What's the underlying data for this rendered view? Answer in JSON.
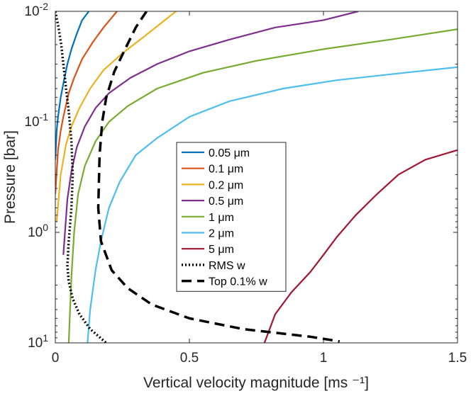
{
  "chart_data": {
    "type": "line",
    "title": "",
    "xlabel": "Vertical velocity magnitude [ms ⁻¹]",
    "ylabel": "Pressure [bar]",
    "xlim": [
      0,
      1.5
    ],
    "ylim": [
      0.01,
      10
    ],
    "y_scale": "log",
    "y_reversed": true,
    "grid": false,
    "legend_position": "center",
    "x_ticks": [
      0,
      0.5,
      1,
      1.5
    ],
    "x_tick_labels": [
      "0",
      "0.5",
      "1",
      "1.5"
    ],
    "y_ticks": [
      {
        "value": 0.01,
        "base": "10",
        "exp": "-2"
      },
      {
        "value": 0.1,
        "base": "10",
        "exp": "-1"
      },
      {
        "value": 1,
        "base": "10",
        "exp": "0"
      },
      {
        "value": 10,
        "base": "10",
        "exp": "1"
      }
    ],
    "series": [
      {
        "name": "0.05 μm",
        "color": "#0072BD",
        "dash": "solid",
        "x": [
          0.0,
          0.005,
          0.01,
          0.02,
          0.03,
          0.045,
          0.06,
          0.08,
          0.1,
          0.125
        ],
        "y": [
          0.22,
          0.12,
          0.09,
          0.06,
          0.045,
          0.03,
          0.022,
          0.016,
          0.012,
          0.01
        ]
      },
      {
        "name": "0.1 μm",
        "color": "#D95319",
        "dash": "solid",
        "x": [
          0.0,
          0.01,
          0.02,
          0.03,
          0.05,
          0.07,
          0.1,
          0.14,
          0.18,
          0.23
        ],
        "y": [
          0.45,
          0.18,
          0.12,
          0.09,
          0.055,
          0.04,
          0.027,
          0.019,
          0.014,
          0.01
        ]
      },
      {
        "name": "0.2 μm",
        "color": "#EDB120",
        "dash": "solid",
        "x": [
          0.005,
          0.02,
          0.04,
          0.06,
          0.09,
          0.13,
          0.18,
          0.25,
          0.33,
          0.45
        ],
        "y": [
          0.8,
          0.3,
          0.16,
          0.11,
          0.075,
          0.05,
          0.034,
          0.024,
          0.017,
          0.01
        ]
      },
      {
        "name": "0.5 μm",
        "color": "#7E2F8E",
        "dash": "solid",
        "x": [
          0.03,
          0.045,
          0.06,
          0.08,
          0.11,
          0.15,
          0.2,
          0.28,
          0.38,
          0.5,
          0.65,
          0.82,
          1.0,
          1.13
        ],
        "y": [
          1.6,
          0.5,
          0.28,
          0.17,
          0.11,
          0.075,
          0.055,
          0.04,
          0.03,
          0.023,
          0.018,
          0.014,
          0.012,
          0.01
        ]
      },
      {
        "name": "1 μm",
        "color": "#77AC30",
        "dash": "solid",
        "x": [
          0.05,
          0.06,
          0.07,
          0.085,
          0.11,
          0.15,
          0.2,
          0.27,
          0.38,
          0.55,
          0.75,
          1.0,
          1.25,
          1.5
        ],
        "y": [
          10,
          2.5,
          1.0,
          0.45,
          0.25,
          0.15,
          0.1,
          0.072,
          0.05,
          0.036,
          0.028,
          0.022,
          0.018,
          0.0145
        ]
      },
      {
        "name": "2 μm",
        "color": "#4DBEEE",
        "dash": "solid",
        "x": [
          0.12,
          0.13,
          0.15,
          0.17,
          0.2,
          0.24,
          0.3,
          0.38,
          0.5,
          0.65,
          0.85,
          1.05,
          1.3,
          1.5
        ],
        "y": [
          10,
          5.0,
          2.2,
          1.2,
          0.6,
          0.35,
          0.2,
          0.14,
          0.09,
          0.065,
          0.05,
          0.042,
          0.036,
          0.032
        ]
      },
      {
        "name": "5 μm",
        "color": "#A2142F",
        "dash": "solid",
        "x": [
          0.78,
          0.82,
          0.88,
          0.95,
          1.0,
          1.05,
          1.12,
          1.2,
          1.28,
          1.38,
          1.5
        ],
        "y": [
          10,
          5.5,
          3.5,
          2.3,
          1.6,
          1.1,
          0.7,
          0.45,
          0.3,
          0.22,
          0.18
        ]
      },
      {
        "name": "RMS w",
        "color": "#000000",
        "dash": "dotted",
        "x": [
          0.0,
          0.012,
          0.022,
          0.03,
          0.04,
          0.05,
          0.06,
          0.065,
          0.06,
          0.05,
          0.045,
          0.05,
          0.065,
          0.09,
          0.13,
          0.19
        ],
        "y": [
          0.01,
          0.014,
          0.02,
          0.03,
          0.05,
          0.08,
          0.15,
          0.3,
          0.6,
          1.2,
          2.0,
          2.8,
          4.0,
          5.5,
          7.5,
          10
        ]
      },
      {
        "name": "Top 0.1% w",
        "color": "#000000",
        "dash": "dashed",
        "x": [
          0.34,
          0.3,
          0.26,
          0.22,
          0.19,
          0.175,
          0.165,
          0.16,
          0.17,
          0.21,
          0.27,
          0.36,
          0.5,
          0.7,
          0.95,
          1.06
        ],
        "y": [
          0.01,
          0.014,
          0.022,
          0.035,
          0.06,
          0.1,
          0.2,
          0.6,
          1.2,
          2.2,
          3.2,
          4.5,
          6.0,
          7.5,
          8.8,
          9.7
        ]
      }
    ]
  }
}
